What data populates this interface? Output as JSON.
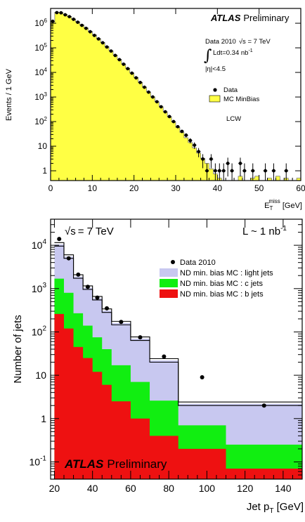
{
  "chart_data": [
    {
      "type": "histogram",
      "experiment": "ATLAS",
      "status": "Preliminary",
      "xlabel": "E",
      "xlabel_sub": "T",
      "xlabel_sup": "miss",
      "xlabel_unit": " [GeV]",
      "ylabel": "Events / 1 GeV",
      "xlim": [
        0,
        60
      ],
      "ylim_log": [
        0.4,
        4000000
      ],
      "log_y": true,
      "x_ticks": [
        0,
        10,
        20,
        30,
        40,
        50,
        60
      ],
      "y_ticks": [
        {
          "v": 1,
          "b": "1",
          "e": ""
        },
        {
          "v": 10,
          "b": "10",
          "e": ""
        },
        {
          "v": 100,
          "b": "10",
          "e": "2"
        },
        {
          "v": 1000,
          "b": "10",
          "e": "3"
        },
        {
          "v": 10000,
          "b": "10",
          "e": "4"
        },
        {
          "v": 100000,
          "b": "10",
          "e": "5"
        },
        {
          "v": 1000000,
          "b": "10",
          "e": "6"
        }
      ],
      "info_line1": "Data 2010",
      "info_sqrt": "√s",
      "info_energy": " = 7 TeV",
      "info_integral": "∫",
      "info_lumi": "Ldt=0.34 nb",
      "info_lumi_sup": "-1",
      "info_eta": "|η|<4.5",
      "legend": [
        "Data",
        "MC MinBias"
      ],
      "calibration_label": "LCW",
      "mc_color": "#ffff44",
      "mc_bins": [
        1100000,
        2800000,
        2700000,
        2300000,
        1900000,
        1500000,
        1150000,
        870000,
        650000,
        470000,
        340000,
        240000,
        165000,
        112000,
        76000,
        51000,
        34000,
        22500,
        14800,
        9600,
        6200,
        4000,
        2550,
        1620,
        1020,
        640,
        400,
        250,
        155,
        96,
        58,
        36,
        22,
        14,
        8.5,
        5.2,
        3.2,
        2.0,
        1.2,
        0.75,
        0.5,
        0.35,
        0.25,
        0.18,
        0.4,
        0.6,
        0.3,
        0.4,
        0.5,
        0.6,
        0.3,
        0.4,
        0.5,
        0.3,
        0.6,
        0.4,
        0.5,
        0.3,
        0.4,
        0.5
      ],
      "data_points": [
        {
          "x": 0.5,
          "y": 1200000
        },
        {
          "x": 1.5,
          "y": 2700000
        },
        {
          "x": 2.5,
          "y": 2650000
        },
        {
          "x": 3.5,
          "y": 2200000
        },
        {
          "x": 4.5,
          "y": 1850000
        },
        {
          "x": 5.5,
          "y": 1450000
        },
        {
          "x": 6.5,
          "y": 1100000
        },
        {
          "x": 7.5,
          "y": 820000
        },
        {
          "x": 8.5,
          "y": 620000
        },
        {
          "x": 9.5,
          "y": 450000
        },
        {
          "x": 10.5,
          "y": 320000
        },
        {
          "x": 11.5,
          "y": 230000
        },
        {
          "x": 12.5,
          "y": 160000
        },
        {
          "x": 13.5,
          "y": 108000
        },
        {
          "x": 14.5,
          "y": 74000
        },
        {
          "x": 15.5,
          "y": 49000
        },
        {
          "x": 16.5,
          "y": 33000
        },
        {
          "x": 17.5,
          "y": 21500
        },
        {
          "x": 18.5,
          "y": 14200
        },
        {
          "x": 19.5,
          "y": 9300
        },
        {
          "x": 20.5,
          "y": 6000
        },
        {
          "x": 21.5,
          "y": 3900
        },
        {
          "x": 22.5,
          "y": 2500
        },
        {
          "x": 23.5,
          "y": 1580
        },
        {
          "x": 24.5,
          "y": 1000
        },
        {
          "x": 25.5,
          "y": 640
        },
        {
          "x": 26.5,
          "y": 400
        },
        {
          "x": 27.5,
          "y": 250
        },
        {
          "x": 28.5,
          "y": 160
        },
        {
          "x": 29.5,
          "y": 100
        },
        {
          "x": 30.5,
          "y": 62
        },
        {
          "x": 31.5,
          "y": 40
        },
        {
          "x": 32.5,
          "y": 28
        },
        {
          "x": 33.5,
          "y": 17
        },
        {
          "x": 34.5,
          "y": 11
        },
        {
          "x": 35.5,
          "y": 6
        },
        {
          "x": 36.5,
          "y": 3
        },
        {
          "x": 37.5,
          "y": 1
        },
        {
          "x": 38.5,
          "y": 3
        },
        {
          "x": 39.5,
          "y": 1
        },
        {
          "x": 40.5,
          "y": 1
        },
        {
          "x": 41.5,
          "y": 1
        },
        {
          "x": 42.5,
          "y": 2
        },
        {
          "x": 43.5,
          "y": 1
        },
        {
          "x": 45.5,
          "y": 2
        },
        {
          "x": 46.5,
          "y": 1
        },
        {
          "x": 48.5,
          "y": 1
        },
        {
          "x": 51.5,
          "y": 1
        },
        {
          "x": 53.5,
          "y": 1
        },
        {
          "x": 56.5,
          "y": 1
        }
      ]
    },
    {
      "type": "histogram",
      "title_sqrt": "√s",
      "title_energy": "= 7 TeV",
      "lumi_label": "L ~ 1 nb",
      "lumi_sup": "-1",
      "xlabel": "Jet p",
      "xlabel_sub": "T",
      "xlabel_unit": " [GeV]",
      "ylabel": "Number of jets",
      "xlim": [
        18,
        150
      ],
      "ylim_log": [
        0.04,
        40000
      ],
      "log_y": true,
      "x_ticks": [
        20,
        40,
        60,
        80,
        100,
        120,
        140
      ],
      "y_ticks": [
        {
          "v": 0.1,
          "b": "10",
          "e": "-1"
        },
        {
          "v": 1,
          "b": "1",
          "e": ""
        },
        {
          "v": 10,
          "b": "10",
          "e": ""
        },
        {
          "v": 100,
          "b": "10",
          "e": "2"
        },
        {
          "v": 1000,
          "b": "10",
          "e": "3"
        },
        {
          "v": 10000,
          "b": "10",
          "e": "4"
        }
      ],
      "experiment": "ATLAS",
      "status": "Preliminary",
      "legend": [
        "Data 2010",
        "ND min. bias MC : light jets",
        "ND min. bias MC : c jets",
        "ND min. bias MC : b jets"
      ],
      "colors": {
        "light": "#c8c8f0",
        "c": "#11ee11",
        "b": "#ee1111"
      },
      "bin_edges": [
        20,
        25,
        30,
        35,
        40,
        45,
        50,
        60,
        70,
        85,
        110,
        150
      ],
      "total_mc": [
        10500,
        5500,
        1900,
        1050,
        600,
        310,
        160,
        70,
        22,
        2.2,
        2.2
      ],
      "c_top": [
        1700,
        800,
        270,
        140,
        75,
        40,
        17,
        7,
        2.6,
        0.7,
        0.25
      ],
      "b_top": [
        260,
        120,
        45,
        25,
        12,
        6,
        2.5,
        1,
        0.4,
        0.2,
        0.07
      ],
      "data_points": [
        {
          "x": 22.5,
          "y": 14000
        },
        {
          "x": 27.5,
          "y": 5000
        },
        {
          "x": 32.5,
          "y": 2100
        },
        {
          "x": 37.5,
          "y": 1100
        },
        {
          "x": 42.5,
          "y": 620
        },
        {
          "x": 47.5,
          "y": 350
        },
        {
          "x": 55,
          "y": 170
        },
        {
          "x": 65,
          "y": 75
        },
        {
          "x": 77.5,
          "y": 27
        },
        {
          "x": 97.5,
          "y": 9
        },
        {
          "x": 130,
          "y": 2
        }
      ]
    }
  ]
}
